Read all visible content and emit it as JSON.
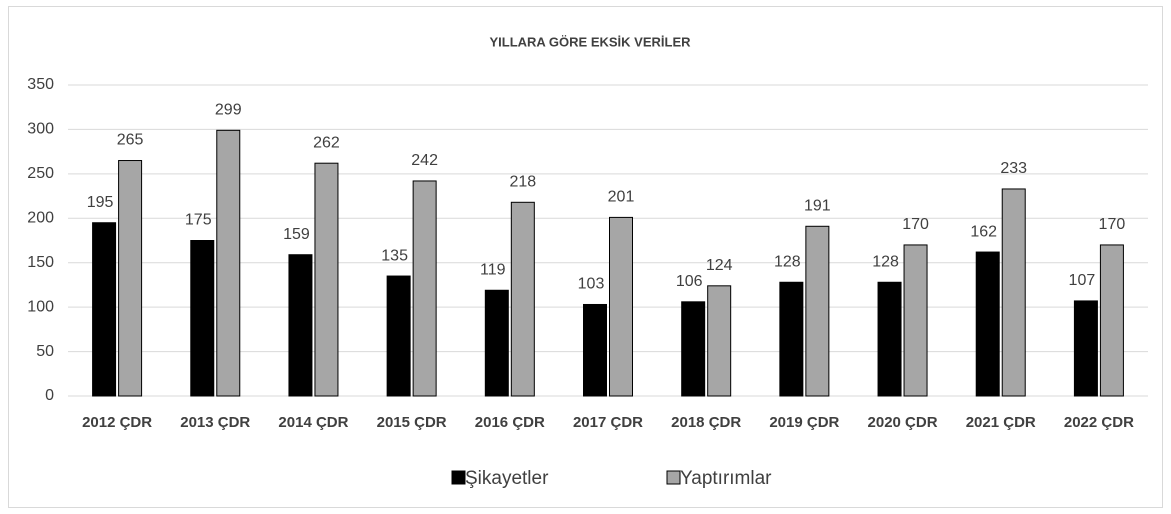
{
  "chart_data": {
    "type": "bar",
    "title": "YILLARA GÖRE EKSİK VERİLER",
    "categories": [
      "2012 ÇDR",
      "2013 ÇDR",
      "2014 ÇDR",
      "2015 ÇDR",
      "2016 ÇDR",
      "2017 ÇDR",
      "2018 ÇDR",
      "2019 ÇDR",
      "2020 ÇDR",
      "2021 ÇDR",
      "2022 ÇDR"
    ],
    "series": [
      {
        "name": "Şikayetler",
        "color": "#000000",
        "values": [
          195,
          175,
          159,
          135,
          119,
          103,
          106,
          128,
          128,
          162,
          107
        ]
      },
      {
        "name": "Yaptırımlar",
        "color": "#a6a6a6",
        "values": [
          265,
          299,
          262,
          242,
          218,
          201,
          124,
          191,
          170,
          233,
          170
        ]
      }
    ],
    "ylim": [
      0,
      350
    ],
    "yticks": [
      0,
      50,
      100,
      150,
      200,
      250,
      300,
      350
    ],
    "grid": true,
    "legend": "bottom"
  }
}
